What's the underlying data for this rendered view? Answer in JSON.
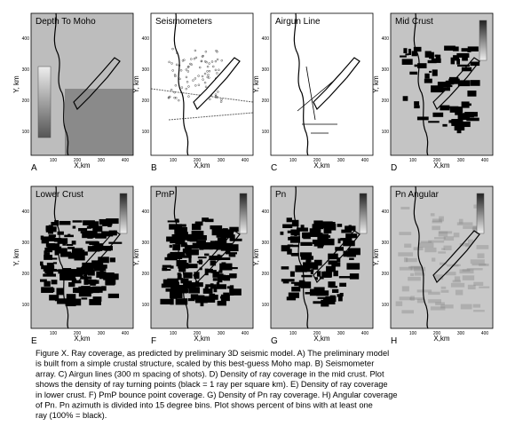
{
  "figure": {
    "axes": {
      "x_label": "X,km",
      "y_label": "Y, km",
      "ticks": [
        "100",
        "200",
        "300",
        "400"
      ]
    },
    "panels": [
      {
        "title": "Depth To Moho",
        "letter": "A"
      },
      {
        "title": "Seismometers",
        "letter": "B"
      },
      {
        "title": "Airgun Line",
        "letter": "C"
      },
      {
        "title": "Mid Crust",
        "letter": "D"
      },
      {
        "title": "Lower Crust",
        "letter": "E"
      },
      {
        "title": "PmP",
        "letter": "F"
      },
      {
        "title": "Pn",
        "letter": "G"
      },
      {
        "title": "Pn Angular",
        "letter": "H"
      }
    ],
    "caption": [
      "Figure X.  Ray coverage, as predicted by preliminary 3D seismic model. A) The preliminary model",
      "is built from a simple crustal structure, scaled by this best-guess Moho map.  B) Seismometer",
      "array.  C) Airgun lines (300 m spacing of shots).  D) Density of ray coverage in the mid crust. Plot",
      "shows the density of ray turning points (black = 1 ray per square km).  E) Density of ray coverage",
      "in lower crust.  F) PmP bounce point coverage.  G) Density of Pn ray coverage.  H) Angular coverage",
      "of Pn.  Pn azimuth is divided into 15 degree bins.  Plot shows percent of bins with at least one",
      "ray (100% = black)."
    ]
  }
}
